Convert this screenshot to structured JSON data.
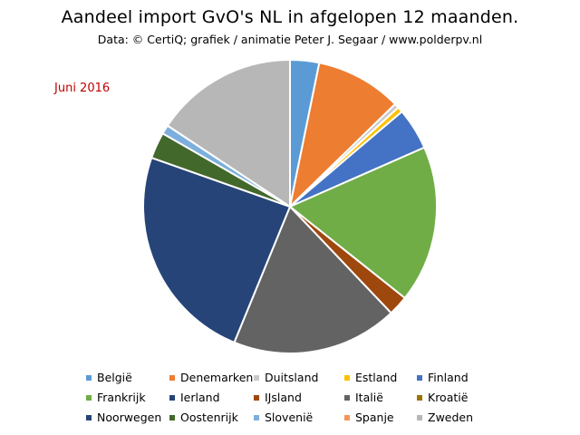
{
  "chart_data": {
    "type": "pie",
    "title": "Aandeel import GvO's NL in afgelopen 12 maanden.",
    "subtitle": "Data: © CertiQ; grafiek / animatie  Peter J. Segaar / www.polderpv.nl",
    "annotation": "Juni 2016",
    "annotation_color": "#c00000",
    "legend_position": "bottom",
    "slices": [
      {
        "label": "België",
        "value": 3.2,
        "color": "#5b9bd5"
      },
      {
        "label": "Denemarken",
        "value": 9.5,
        "color": "#ed7d31"
      },
      {
        "label": "Duitsland",
        "value": 0.5,
        "color": "#c9c9c9"
      },
      {
        "label": "Estland",
        "value": 0.6,
        "color": "#ffc000"
      },
      {
        "label": "Finland",
        "value": 4.6,
        "color": "#4472c4"
      },
      {
        "label": "Frankrijk",
        "value": 17.3,
        "color": "#70ad47"
      },
      {
        "label": "Ierland",
        "value": 0.0,
        "color": "#264478"
      },
      {
        "label": "IJsland",
        "value": 2.2,
        "color": "#9e480e"
      },
      {
        "label": "Italië",
        "value": 18.3,
        "color": "#636363"
      },
      {
        "label": "Kroatië",
        "value": 0.0,
        "color": "#997300"
      },
      {
        "label": "Noorwegen",
        "value": 24.2,
        "color": "#264478"
      },
      {
        "label": "Oostenrijk",
        "value": 2.9,
        "color": "#43682b"
      },
      {
        "label": "Slovenië",
        "value": 1.0,
        "color": "#7cafdd"
      },
      {
        "label": "Spanje",
        "value": 0.0,
        "color": "#f1975a"
      },
      {
        "label": "Zweden",
        "value": 15.7,
        "color": "#b7b7b7"
      }
    ]
  }
}
